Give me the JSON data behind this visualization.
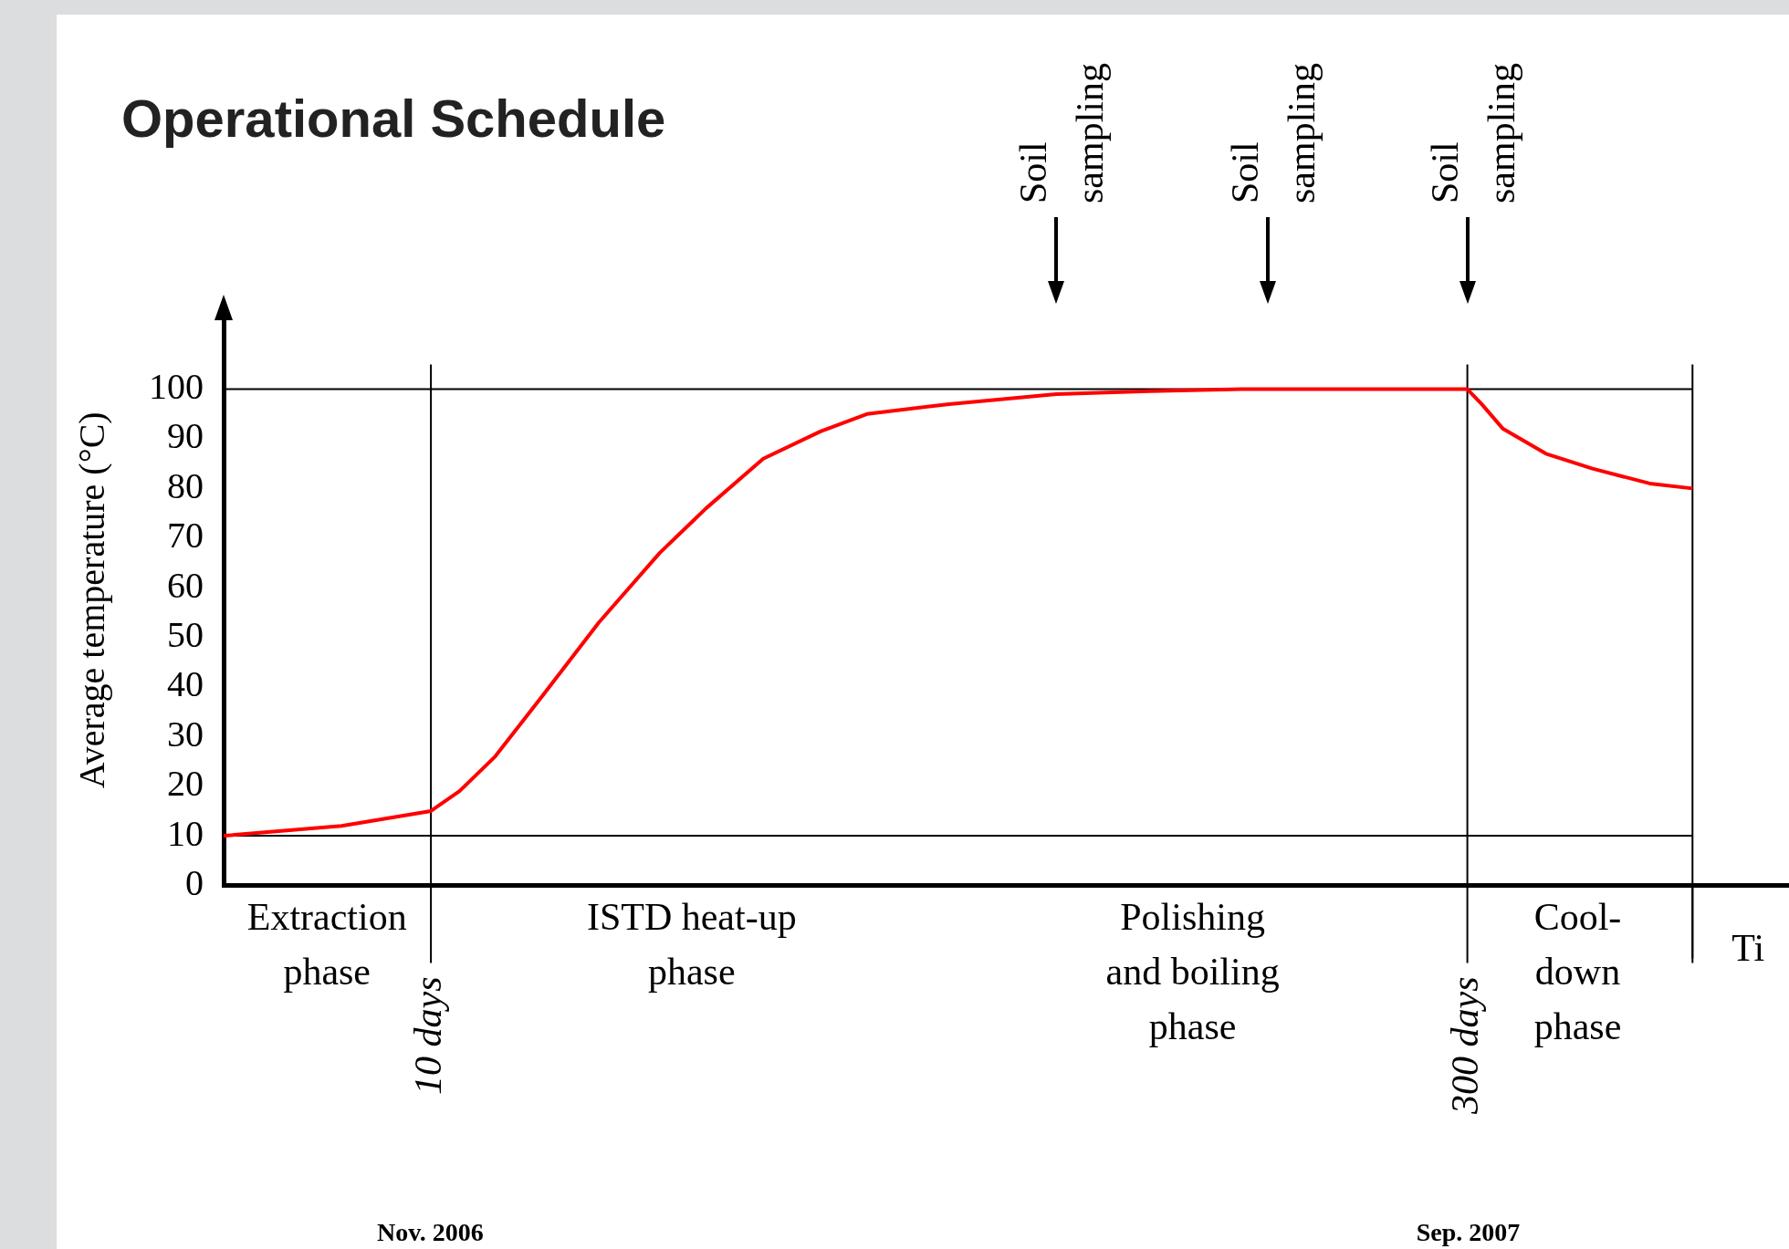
{
  "chart_data": {
    "type": "line",
    "title": "Operational Schedule",
    "xlabel": "Ti",
    "ylabel": "Average temperature (°C)",
    "x": [
      -48,
      -15,
      10,
      18,
      28,
      41,
      57,
      74,
      87,
      103,
      119,
      132,
      155,
      185,
      211,
      237,
      300,
      304,
      310,
      322,
      335,
      351,
      363
    ],
    "series": [
      {
        "color": "#ff0000",
        "values": [
          10,
          12,
          15,
          19,
          26,
          38,
          53,
          67,
          76,
          86,
          91.5,
          95,
          97,
          99,
          99.6,
          100,
          100,
          97,
          92,
          87,
          84,
          81,
          80
        ]
      }
    ],
    "xlim": [
      -48,
      390
    ],
    "xticks": [
      {
        "value": 10,
        "label": "10 days"
      },
      {
        "value": 300,
        "label": "300 days"
      }
    ],
    "ylim": [
      0,
      115
    ],
    "yticks": [
      0,
      10,
      20,
      30,
      40,
      50,
      60,
      70,
      80,
      90,
      100
    ],
    "grid": false,
    "legend": false,
    "marker": "none",
    "line_style": "solid",
    "ref_lines": [
      {
        "axis": "y",
        "value": 10,
        "color": "#000000"
      },
      {
        "axis": "y",
        "value": 100,
        "color": "#000000"
      },
      {
        "axis": "x",
        "value": 10,
        "color": "#000000"
      },
      {
        "axis": "x",
        "value": 300,
        "color": "#000000"
      },
      {
        "axis": "x",
        "value": 363,
        "color": "#000000"
      }
    ],
    "annotations": [
      "Extraction\nphase",
      "ISTD heat-up\nphase",
      "Polishing\nand boiling\nphase",
      "Cool-\ndown\nphase",
      "Nov. 2006",
      "Sep. 2007",
      "Soil\nsampling",
      "Soil\nsampling",
      "Soil\nsampling"
    ]
  }
}
